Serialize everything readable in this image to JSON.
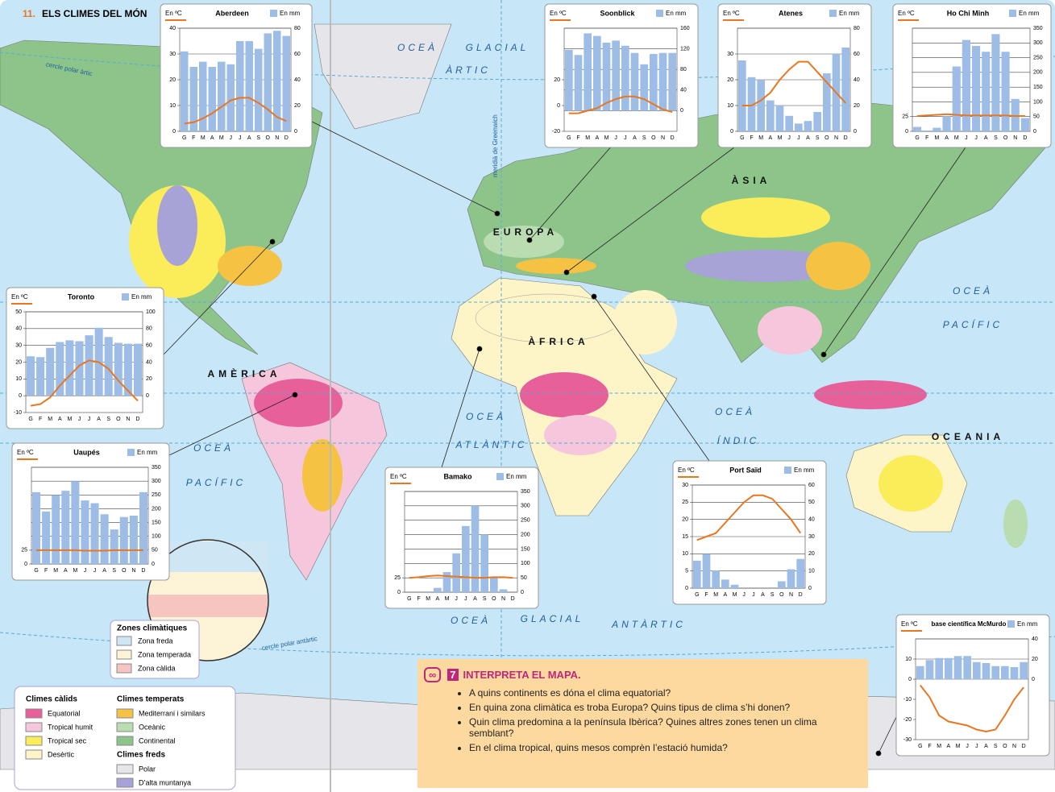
{
  "number": "11.",
  "title": "ELS CLIMES DEL MÓN",
  "map_labels": [
    "OCEÀ",
    "GLACIAL",
    "ÀRTIC",
    "OCEÀ",
    "PACÍFIC",
    "OCEÀ",
    "ATLÀNTIC",
    "OCEÀ",
    "ÍNDIC",
    "OCEÀ",
    "PACÍFIC",
    "OCEÀ",
    "GLACIAL",
    "ANTÀRTIC",
    "EUROPA",
    "ÀSIA",
    "ÀFRICA",
    "AMÈRICA",
    "OCEANIA"
  ],
  "lines": {
    "arctic": "cercle polar àrtic",
    "antarctic": "cercle polar antàrtic",
    "greenwich": "meridià de Greenwich"
  },
  "units": {
    "temp": "En ºC",
    "precip": "En mm"
  },
  "months": [
    "G",
    "F",
    "M",
    "A",
    "M",
    "J",
    "J",
    "A",
    "S",
    "O",
    "N",
    "D"
  ],
  "bar_color": "#9dbde6",
  "line_color": "#e87722",
  "climographs": [
    {
      "title": "Aberdeen",
      "ylim": [
        0,
        40
      ],
      "yticks": [
        0,
        10,
        20,
        30,
        40
      ],
      "y2lim": [
        0,
        80
      ],
      "y2ticks": [
        0,
        20,
        40,
        60,
        80
      ],
      "precipitation": [
        62,
        50,
        54,
        50,
        54,
        52,
        70,
        70,
        64,
        76,
        78,
        74
      ],
      "temperature": [
        3,
        3.5,
        5,
        7,
        9.5,
        12,
        13,
        13,
        11,
        8.5,
        5.5,
        4
      ]
    },
    {
      "title": "Soonblick",
      "ylim": [
        -20,
        60
      ],
      "yticks": [
        -20,
        0,
        20
      ],
      "y2lim": [
        -40,
        160
      ],
      "y2ticks": [
        0,
        40,
        80,
        120,
        160
      ],
      "precipitation": [
        118,
        108,
        150,
        145,
        132,
        136,
        126,
        112,
        90,
        110,
        112,
        112
      ],
      "temperature": [
        -6,
        -6,
        -4,
        -2,
        2,
        5,
        7,
        7,
        5,
        1,
        -3,
        -5
      ]
    },
    {
      "title": "Atenes",
      "ylim": [
        0,
        40
      ],
      "yticks": [
        0,
        10,
        20,
        30
      ],
      "y2lim": [
        0,
        80
      ],
      "y2ticks": [
        0,
        20,
        40,
        60,
        80
      ],
      "precipitation": [
        55,
        42,
        40,
        24,
        20,
        12,
        6,
        8,
        15,
        45,
        60,
        65
      ],
      "temperature": [
        10,
        10,
        12,
        15,
        20,
        24,
        27,
        27,
        23,
        19,
        15,
        11
      ]
    },
    {
      "title": "Ho Chi Minh",
      "ylim": [
        0,
        175
      ],
      "yticks": [
        0,
        25
      ],
      "y2lim": [
        0,
        350
      ],
      "y2ticks": [
        0,
        50,
        100,
        150,
        200,
        250,
        300,
        350
      ],
      "precipitation": [
        15,
        3,
        12,
        50,
        220,
        310,
        290,
        270,
        330,
        270,
        110,
        45
      ],
      "temperature": [
        26,
        27,
        28,
        29,
        28,
        27,
        27,
        27,
        27,
        27,
        26,
        26
      ]
    },
    {
      "title": "Toronto",
      "ylim": [
        -10,
        50
      ],
      "yticks": [
        -10,
        0,
        10,
        20,
        30,
        40,
        50
      ],
      "y2lim": [
        -20,
        100
      ],
      "y2ticks": [
        0,
        20,
        40,
        60,
        80,
        100
      ],
      "precipitation": [
        47,
        46,
        57,
        64,
        66,
        65,
        72,
        81,
        70,
        63,
        62,
        62
      ],
      "temperature": [
        -6,
        -5,
        -1,
        6,
        12,
        18,
        21,
        20,
        16,
        9,
        3,
        -3
      ]
    },
    {
      "title": "Uaupés",
      "ylim": [
        0,
        175
      ],
      "yticks": [
        0,
        25
      ],
      "y2lim": [
        0,
        350
      ],
      "y2ticks": [
        0,
        50,
        100,
        150,
        200,
        250,
        300,
        350
      ],
      "precipitation": [
        260,
        190,
        250,
        265,
        300,
        230,
        220,
        180,
        125,
        170,
        175,
        260
      ],
      "temperature": [
        25,
        25,
        25,
        25,
        25,
        24,
        24,
        24,
        25,
        25,
        25,
        25
      ]
    },
    {
      "title": "Bamako",
      "ylim": [
        0,
        175
      ],
      "yticks": [
        0,
        25
      ],
      "y2lim": [
        0,
        350
      ],
      "y2ticks": [
        0,
        50,
        100,
        150,
        200,
        250,
        300,
        350
      ],
      "precipitation": [
        0,
        0,
        3,
        15,
        70,
        135,
        230,
        300,
        200,
        50,
        10,
        0
      ],
      "temperature": [
        25,
        26,
        28,
        29,
        28,
        27,
        26,
        25,
        25,
        26,
        26,
        25
      ]
    },
    {
      "title": "Port Saïd",
      "ylim": [
        0,
        30
      ],
      "yticks": [
        0,
        5,
        10,
        15,
        20,
        25,
        30
      ],
      "y2lim": [
        0,
        60
      ],
      "y2ticks": [
        0,
        10,
        20,
        30,
        40,
        50,
        60
      ],
      "precipitation": [
        16,
        20,
        10,
        5,
        2,
        0,
        0,
        0,
        0,
        4,
        11,
        17
      ],
      "temperature": [
        14,
        15,
        16,
        19,
        22,
        25,
        27,
        27,
        26,
        23,
        20,
        16
      ]
    },
    {
      "title": "base científica McMurdo",
      "ylim": [
        -30,
        20
      ],
      "yticks": [
        -30,
        -20,
        -10,
        0,
        10
      ],
      "y2lim": [
        -60,
        40
      ],
      "y2ticks": [
        0,
        20,
        40
      ],
      "precipitation": [
        13,
        19,
        21,
        21,
        23,
        23,
        17,
        16,
        13,
        13,
        12,
        17
      ],
      "temperature": [
        -3,
        -9,
        -18,
        -21,
        -22,
        -23,
        -25,
        -26,
        -25,
        -18,
        -10,
        -4
      ]
    }
  ],
  "zones": {
    "title": "Zones climàtiques",
    "items": [
      {
        "label": "Zona freda",
        "color": "#cfe6f5"
      },
      {
        "label": "Zona temperada",
        "color": "#fdf3d6"
      },
      {
        "label": "Zona càlida",
        "color": "#f7c5c0"
      }
    ]
  },
  "legend": [
    {
      "title": "Climes càlids",
      "items": [
        {
          "label": "Equatorial",
          "color": "#e8609a"
        },
        {
          "label": "Tropical humit",
          "color": "#f6c6dc"
        },
        {
          "label": "Tropical sec",
          "color": "#fbec5a"
        },
        {
          "label": "Desèrtic",
          "color": "#fdf4c8"
        }
      ]
    },
    {
      "title": "Climes temperats",
      "items": [
        {
          "label": "Mediterrani i similars",
          "color": "#f6c244"
        },
        {
          "label": "Oceànic",
          "color": "#b9dcb0"
        },
        {
          "label": "Continental",
          "color": "#8dc48a"
        }
      ]
    },
    {
      "title": "Climes freds",
      "items": [
        {
          "label": "Polar",
          "color": "#e6e6ea"
        },
        {
          "label": "D’alta muntanya",
          "color": "#a7a3d6"
        }
      ]
    }
  ],
  "activity": {
    "number": "7",
    "title": "INTERPRETA EL MAPA.",
    "questions": [
      "A quins continents es dóna el clima equatorial?",
      "En quina zona climàtica es troba Europa? Quins tipus de clima s’hi donen?",
      "Quin clima predomina a la península Ibèrica? Quines altres zones tenen un clima semblant?",
      "En el clima tropical, quins mesos comprèn l’estació humida?"
    ]
  }
}
